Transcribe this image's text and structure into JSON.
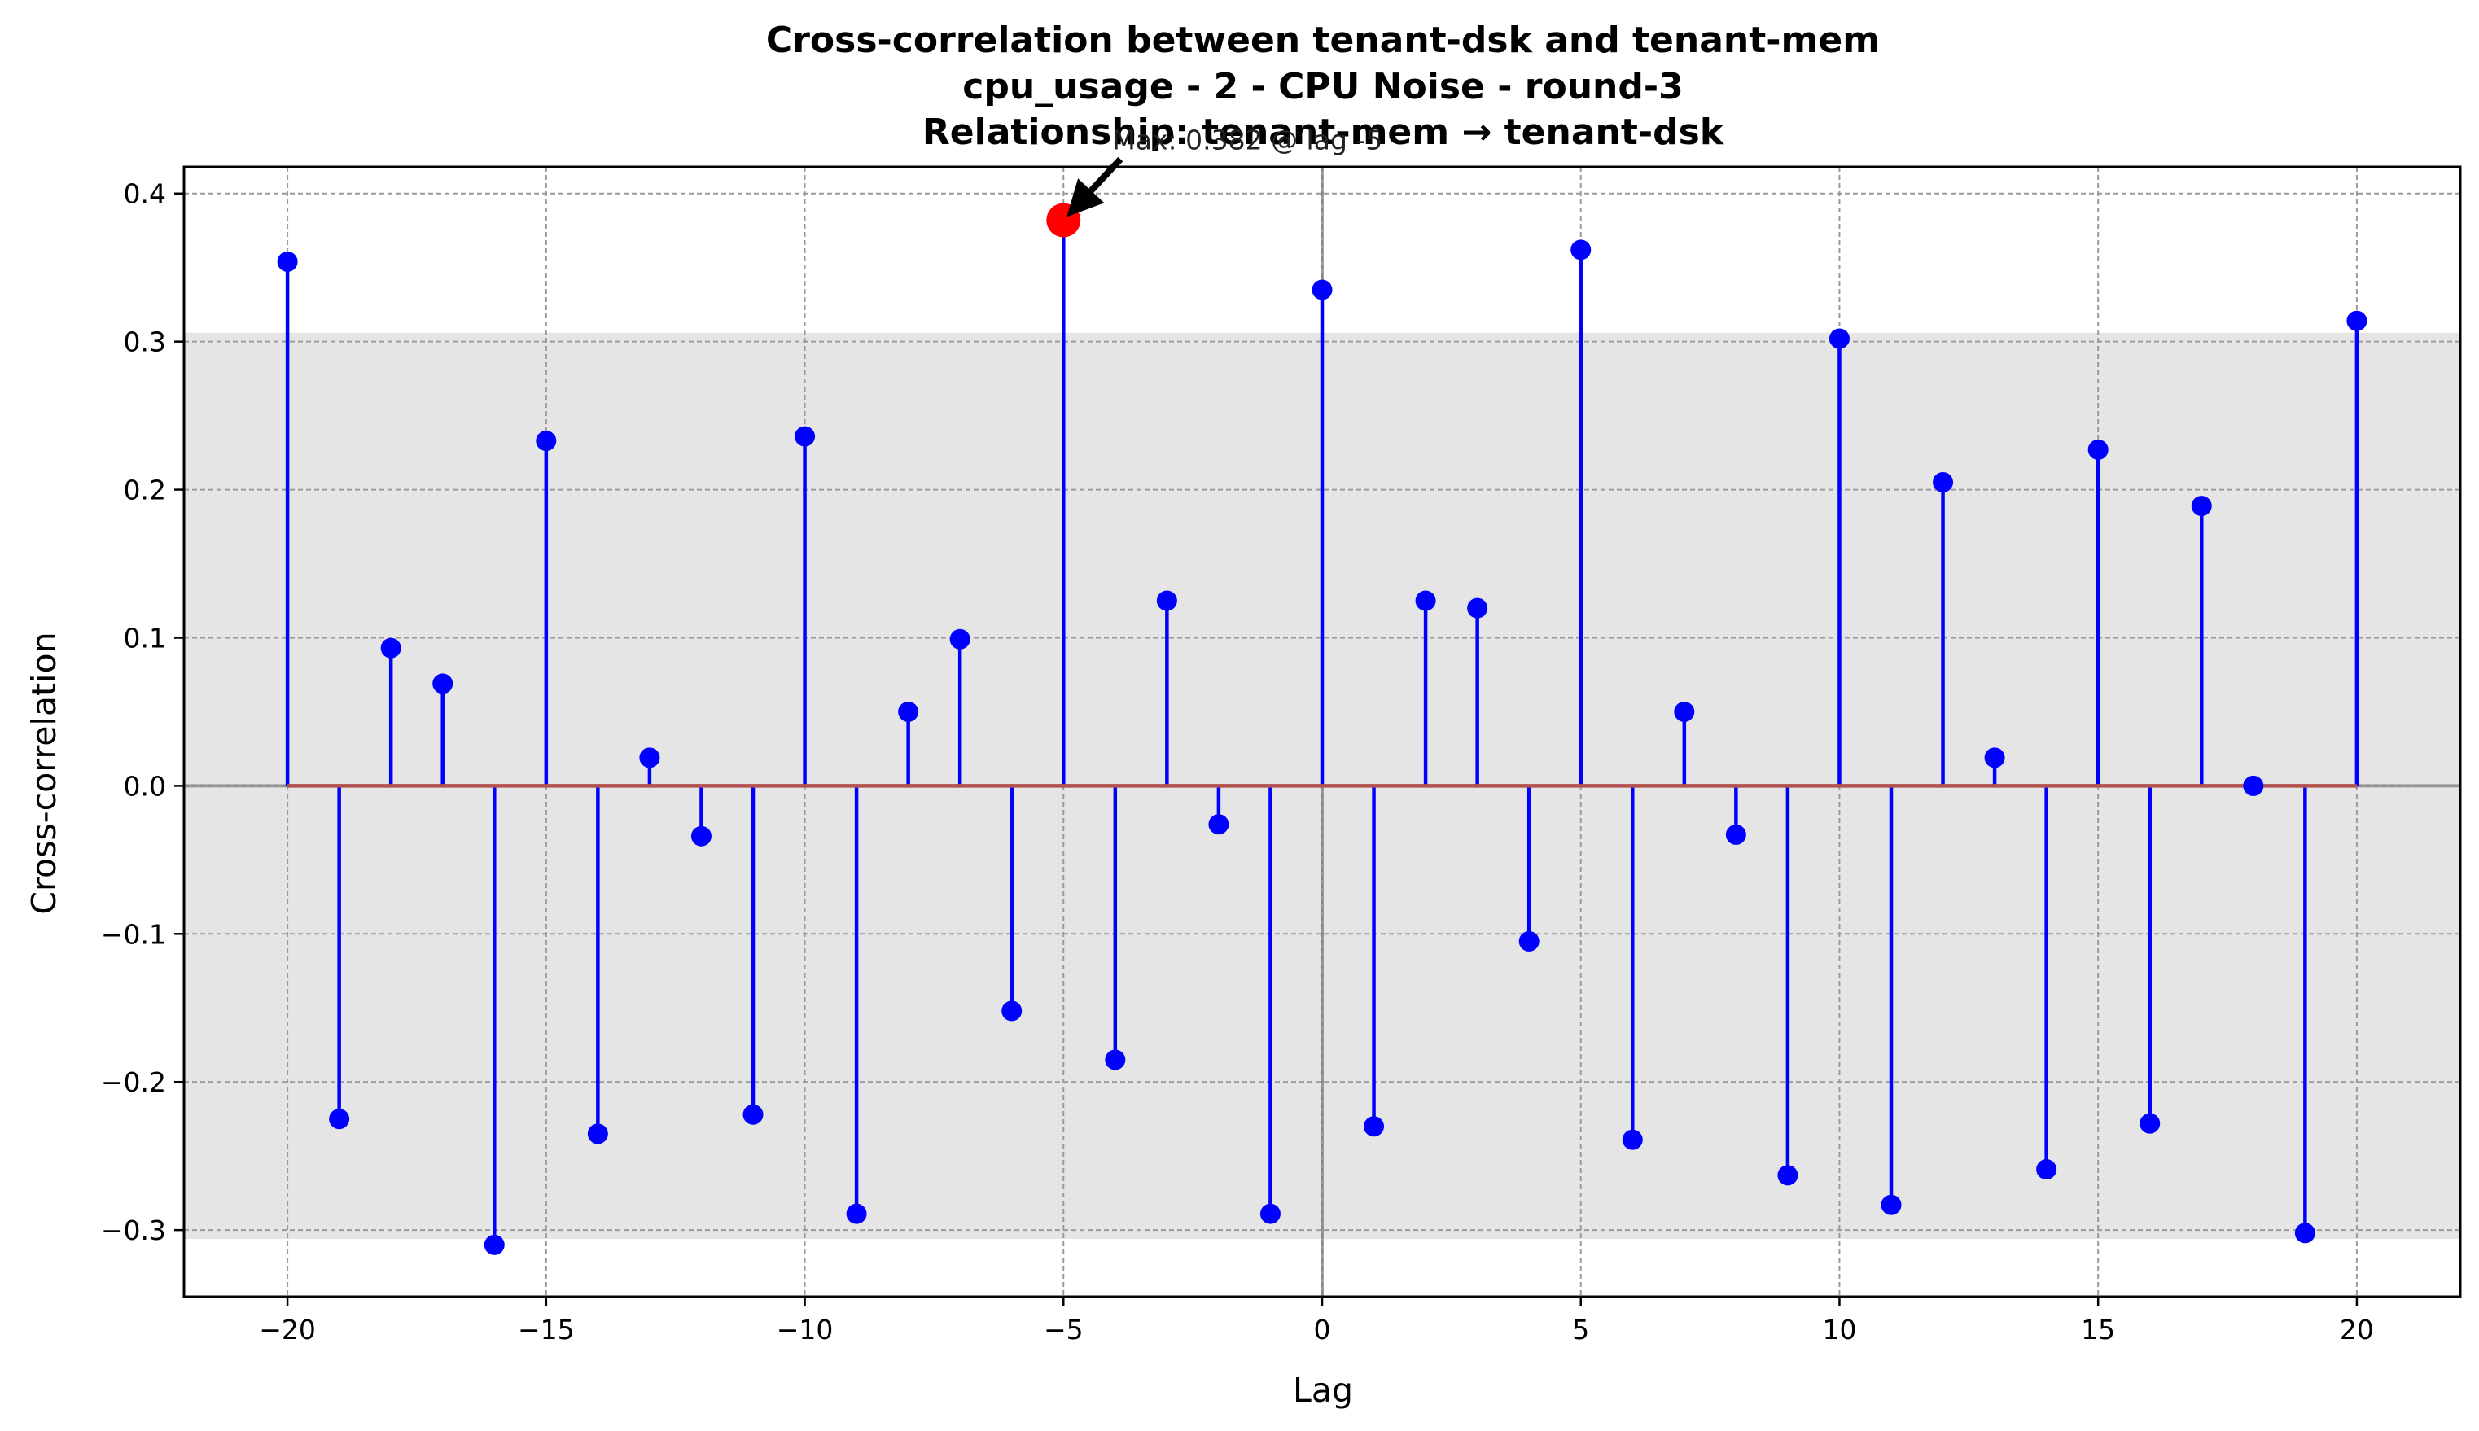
{
  "chart_data": {
    "type": "stem",
    "title_lines": [
      "Cross-correlation between tenant-dsk and tenant-mem",
      "cpu_usage - 2 - CPU Noise - round-3",
      "Relationship: tenant-mem → tenant-dsk"
    ],
    "xlabel": "Lag",
    "ylabel": "Cross-correlation",
    "xlim": [
      -22,
      22
    ],
    "ylim": [
      -0.345,
      0.418
    ],
    "xticks": [
      -20,
      -15,
      -10,
      -5,
      0,
      5,
      10,
      15,
      20
    ],
    "xtick_labels": [
      "−20",
      "−15",
      "−10",
      "−5",
      "0",
      "5",
      "10",
      "15",
      "20"
    ],
    "yticks": [
      -0.3,
      -0.2,
      -0.1,
      0.0,
      0.1,
      0.2,
      0.3,
      0.4
    ],
    "ytick_labels": [
      "−0.3",
      "−0.2",
      "−0.1",
      "0.0",
      "0.1",
      "0.2",
      "0.3",
      "0.4"
    ],
    "grid": true,
    "confidence_band": [
      -0.306,
      0.306
    ],
    "lags": [
      -20,
      -19,
      -18,
      -17,
      -16,
      -15,
      -14,
      -13,
      -12,
      -11,
      -10,
      -9,
      -8,
      -7,
      -6,
      -5,
      -4,
      -3,
      -2,
      -1,
      0,
      1,
      2,
      3,
      4,
      5,
      6,
      7,
      8,
      9,
      10,
      11,
      12,
      13,
      14,
      15,
      16,
      17,
      18,
      19,
      20
    ],
    "values": [
      0.354,
      -0.225,
      0.093,
      0.069,
      -0.31,
      0.233,
      -0.235,
      0.019,
      -0.034,
      -0.222,
      0.236,
      -0.289,
      0.05,
      0.099,
      -0.152,
      0.382,
      -0.185,
      0.125,
      -0.026,
      -0.289,
      0.335,
      -0.23,
      0.125,
      0.12,
      -0.105,
      0.362,
      -0.239,
      0.05,
      -0.033,
      -0.263,
      0.302,
      -0.283,
      0.205,
      0.019,
      -0.259,
      0.227,
      -0.228,
      0.189,
      0.0,
      -0.302,
      0.314
    ],
    "max_point": {
      "lag": -5,
      "value": 0.382
    },
    "annotation": "Max: 0.382 @ lag -5",
    "colors": {
      "stem": "#0000ff",
      "marker": "#0000ff",
      "max_marker": "#ff0000",
      "baseline": "#b5514e",
      "band": "#e5e5e5",
      "grid": "#9a9a9a",
      "zero_lines": "#808080",
      "arrow": "#000000"
    }
  }
}
